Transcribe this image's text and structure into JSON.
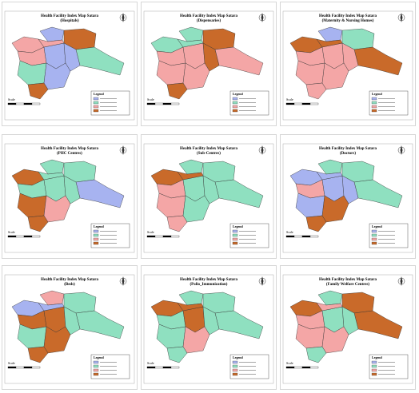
{
  "maps": [
    {
      "title": "Health Facility Index Map Satara",
      "subtitle": "(Hospitals)",
      "legend_title": "Legend",
      "scale_label": "Scale",
      "fills": [
        "#f4a6a6",
        "#a7b3f0",
        "#c96a2a",
        "#f4a6a6",
        "#a7b3f0",
        "#8fe0c0",
        "#a7b3f0",
        "#8fe0c0",
        "#a7b3f0",
        "#c96a2a",
        "#f4a6a6"
      ]
    },
    {
      "title": "Health Facility Index Map Satara",
      "subtitle": "(Dispensaries)",
      "legend_title": "Legend",
      "scale_label": "Scale",
      "fills": [
        "#8fe0c0",
        "#8fe0c0",
        "#c96a2a",
        "#f4a6a6",
        "#f4a6a6",
        "#f4a6a6",
        "#c96a2a",
        "#f4a6a6",
        "#f4a6a6",
        "#c96a2a",
        "#8fe0c0"
      ]
    },
    {
      "title": "Health Facility Index Map Satara",
      "subtitle": "(Maternity & Nursing Homes)",
      "legend_title": "Legend",
      "scale_label": "Scale",
      "fills": [
        "#c96a2a",
        "#a7b3f0",
        "#8fe0c0",
        "#f4a6a6",
        "#f4a6a6",
        "#c96a2a",
        "#f4a6a6",
        "#f4a6a6",
        "#f4a6a6",
        "#f4a6a6",
        "#c96a2a"
      ]
    },
    {
      "title": "Health Facility Index Map Satara",
      "subtitle": "(PHC Centres)",
      "legend_title": "Legend",
      "scale_label": "Scale",
      "fills": [
        "#c96a2a",
        "#8fe0c0",
        "#8fe0c0",
        "#8fe0c0",
        "#8fe0c0",
        "#a7b3f0",
        "#8fe0c0",
        "#c96a2a",
        "#f4a6a6",
        "#c96a2a",
        "#8fe0c0"
      ]
    },
    {
      "title": "Health Facility Index Map Satara",
      "subtitle": "(Sub-Centres)",
      "legend_title": "Legend",
      "scale_label": "Scale",
      "fills": [
        "#c96a2a",
        "#8fe0c0",
        "#8fe0c0",
        "#f4a6a6",
        "#8fe0c0",
        "#8fe0c0",
        "#8fe0c0",
        "#f4a6a6",
        "#8fe0c0",
        "#f4a6a6",
        "#c96a2a"
      ]
    },
    {
      "title": "Health Facility Index Map Satara",
      "subtitle": "(Doctors)",
      "legend_title": "Legend",
      "scale_label": "Scale",
      "fills": [
        "#a7b3f0",
        "#8fe0c0",
        "#8fe0c0",
        "#f4a6a6",
        "#a7b3f0",
        "#8fe0c0",
        "#a7b3f0",
        "#a7b3f0",
        "#c96a2a",
        "#c96a2a",
        "#a7b3f0"
      ]
    },
    {
      "title": "Health Facility Index Map Satara",
      "subtitle": "(Beds)",
      "legend_title": "Legend",
      "scale_label": "Scale",
      "fills": [
        "#a7b3f0",
        "#f4a6a6",
        "#8fe0c0",
        "#c96a2a",
        "#c96a2a",
        "#8fe0c0",
        "#8fe0c0",
        "#8fe0c0",
        "#c96a2a",
        "#c96a2a",
        "#a7b3f0"
      ]
    },
    {
      "title": "Health Facility Index Map Satara",
      "subtitle": "(Polio_Immunization)",
      "legend_title": "Legend",
      "scale_label": "Scale",
      "fills": [
        "#c96a2a",
        "#8fe0c0",
        "#8fe0c0",
        "#8fe0c0",
        "#c96a2a",
        "#8fe0c0",
        "#8fe0c0",
        "#8fe0c0",
        "#f4a6a6",
        "#8fe0c0",
        "#c96a2a"
      ]
    },
    {
      "title": "Health Facility Index Map Satara",
      "subtitle": "(Family Welfare Centres)",
      "legend_title": "Legend",
      "scale_label": "Scale",
      "fills": [
        "#c96a2a",
        "#8fe0c0",
        "#c96a2a",
        "#f4a6a6",
        "#8fe0c0",
        "#c96a2a",
        "#8fe0c0",
        "#f4a6a6",
        "#f4a6a6",
        "#8fe0c0",
        "#f4a6a6"
      ]
    }
  ]
}
